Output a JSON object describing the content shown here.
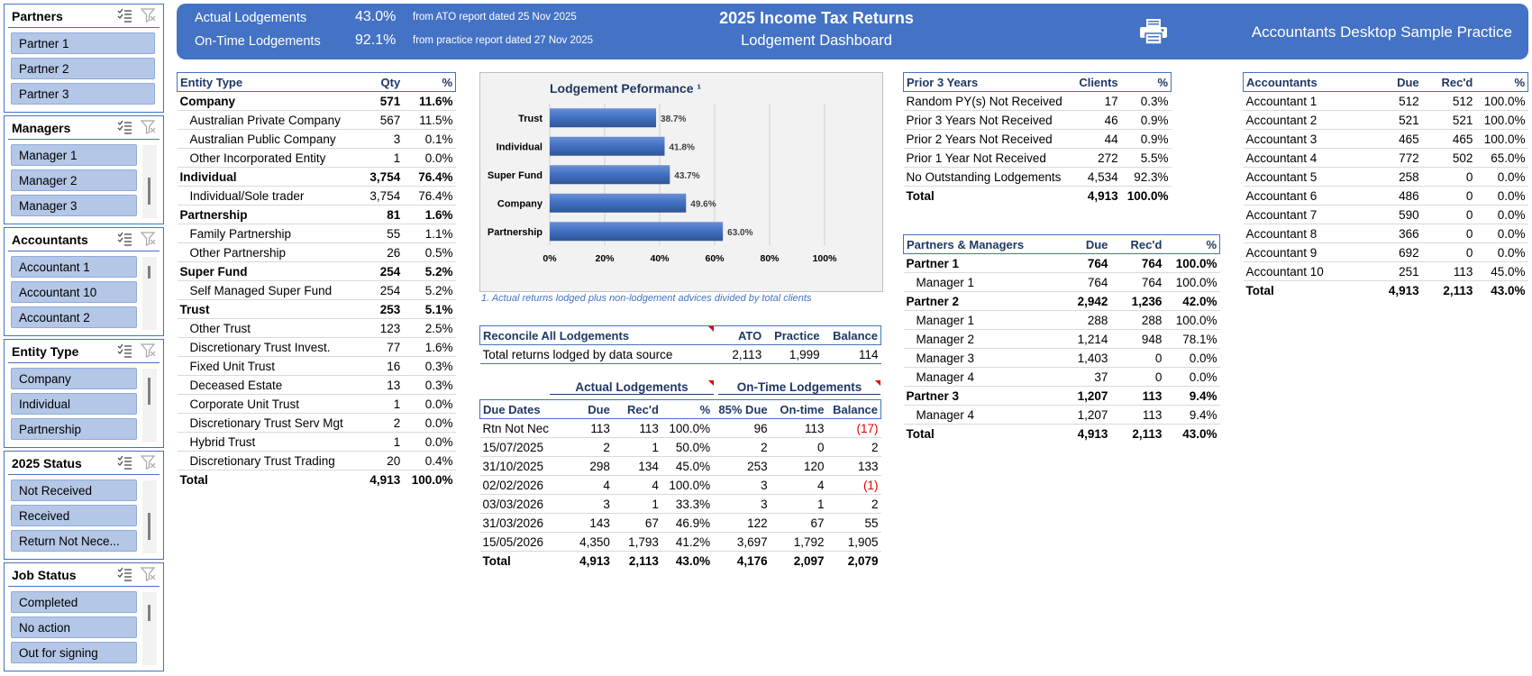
{
  "slicers": [
    {
      "title": "Partners",
      "items": [
        "Partner 1",
        "Partner 2",
        "Partner 3"
      ],
      "scroll": false
    },
    {
      "title": "Managers",
      "items": [
        "Manager 1",
        "Manager 2",
        "Manager 3"
      ],
      "scroll": true
    },
    {
      "title": "Accountants",
      "items": [
        "Accountant 1",
        "Accountant 10",
        "Accountant 2"
      ],
      "scroll": true
    },
    {
      "title": "Entity Type",
      "items": [
        "Company",
        "Individual",
        "Partnership"
      ],
      "scroll": true
    },
    {
      "title": "2025 Status",
      "items": [
        "Not Received",
        "Received",
        "Return Not Nece..."
      ],
      "scroll": true
    },
    {
      "title": "Job Status",
      "items": [
        "Completed",
        "No action",
        "Out for signing"
      ],
      "scroll": true
    }
  ],
  "header": {
    "actual_label": "Actual Lodgements",
    "actual_pct": "43.0%",
    "actual_note": "from ATO report dated 25 Nov 2025",
    "ontime_label": "On-Time Lodgements",
    "ontime_pct": "92.1%",
    "ontime_note": "from practice report dated 27 Nov 2025",
    "title": "2025 Income Tax Returns",
    "subtitle": "Lodgement Dashboard",
    "practice": "Accountants Desktop Sample Practice",
    "colors": {
      "banner": "#4472c4",
      "slicer_fill": "#b4c7e7",
      "bar": "#4472c4",
      "negative": "#e00000"
    }
  },
  "entity_table": {
    "headers": [
      "Entity Type",
      "Qty",
      "%"
    ],
    "rows": [
      {
        "label": "Company",
        "qty": "571",
        "pct": "11.6%",
        "bold": true
      },
      {
        "label": "Australian Private Company",
        "qty": "567",
        "pct": "11.5%"
      },
      {
        "label": "Australian Public Company",
        "qty": "3",
        "pct": "0.1%"
      },
      {
        "label": "Other Incorporated Entity",
        "qty": "1",
        "pct": "0.0%"
      },
      {
        "label": "Individual",
        "qty": "3,754",
        "pct": "76.4%",
        "bold": true
      },
      {
        "label": "Individual/Sole trader",
        "qty": "3,754",
        "pct": "76.4%"
      },
      {
        "label": "Partnership",
        "qty": "81",
        "pct": "1.6%",
        "bold": true
      },
      {
        "label": "Family Partnership",
        "qty": "55",
        "pct": "1.1%"
      },
      {
        "label": "Other Partnership",
        "qty": "26",
        "pct": "0.5%"
      },
      {
        "label": "Super Fund",
        "qty": "254",
        "pct": "5.2%",
        "bold": true
      },
      {
        "label": "Self Managed Super Fund",
        "qty": "254",
        "pct": "5.2%"
      },
      {
        "label": "Trust",
        "qty": "253",
        "pct": "5.1%",
        "bold": true
      },
      {
        "label": "Other Trust",
        "qty": "123",
        "pct": "2.5%"
      },
      {
        "label": "Discretionary Trust Invest.",
        "qty": "77",
        "pct": "1.6%"
      },
      {
        "label": "Fixed Unit Trust",
        "qty": "16",
        "pct": "0.3%"
      },
      {
        "label": "Deceased Estate",
        "qty": "13",
        "pct": "0.3%"
      },
      {
        "label": "Corporate Unit Trust",
        "qty": "1",
        "pct": "0.0%"
      },
      {
        "label": "Discretionary Trust Serv Mgt",
        "qty": "2",
        "pct": "0.0%"
      },
      {
        "label": "Hybrid Trust",
        "qty": "1",
        "pct": "0.0%"
      },
      {
        "label": "Discretionary Trust Trading",
        "qty": "20",
        "pct": "0.4%"
      }
    ],
    "total": {
      "label": "Total",
      "qty": "4,913",
      "pct": "100.0%"
    }
  },
  "chart_data": {
    "type": "bar",
    "title": "Lodgement Peformance ¹",
    "categories": [
      "Trust",
      "Individual",
      "Super Fund",
      "Company",
      "Partnership"
    ],
    "values": [
      38.7,
      41.8,
      43.7,
      49.6,
      63.0
    ],
    "value_labels": [
      "38.7%",
      "41.8%",
      "43.7%",
      "49.6%",
      "63.0%"
    ],
    "xlim": [
      0,
      100
    ],
    "xticks": [
      "0%",
      "20%",
      "40%",
      "60%",
      "80%",
      "100%"
    ],
    "orientation": "horizontal",
    "grid": true
  },
  "chart_note": "1. Actual returns lodged plus non-lodgement advices divided by total clients",
  "reconcile": {
    "headers": [
      "Reconcile All Lodgements",
      "ATO",
      "Practice",
      "Balance"
    ],
    "row": [
      "Total returns lodged by data source",
      "2,113",
      "1,999",
      "114"
    ]
  },
  "due_dates": {
    "group_actual": "Actual Lodgements",
    "group_ontime": "On-Time Lodgements",
    "headers": [
      "Due Dates",
      "Due",
      "Rec'd",
      "%",
      "85% Due",
      "On-time",
      "Balance"
    ],
    "rows": [
      [
        "Rtn Not Nec",
        "113",
        "113",
        "100.0%",
        "96",
        "113",
        "(17)"
      ],
      [
        "15/07/2025",
        "2",
        "1",
        "50.0%",
        "2",
        "0",
        "2"
      ],
      [
        "31/10/2025",
        "298",
        "134",
        "45.0%",
        "253",
        "120",
        "133"
      ],
      [
        "02/02/2026",
        "4",
        "4",
        "100.0%",
        "3",
        "4",
        "(1)"
      ],
      [
        "03/03/2026",
        "3",
        "1",
        "33.3%",
        "3",
        "1",
        "2"
      ],
      [
        "31/03/2026",
        "143",
        "67",
        "46.9%",
        "122",
        "67",
        "55"
      ],
      [
        "15/05/2026",
        "4,350",
        "1,793",
        "41.2%",
        "3,697",
        "1,792",
        "1,905"
      ]
    ],
    "total": [
      "Total",
      "4,913",
      "2,113",
      "43.0%",
      "4,176",
      "2,097",
      "2,079"
    ]
  },
  "prior_years": {
    "headers": [
      "Prior 3 Years",
      "Clients",
      "%"
    ],
    "rows": [
      [
        "Random PY(s) Not Received",
        "17",
        "0.3%"
      ],
      [
        "Prior 3 Years Not Received",
        "46",
        "0.9%"
      ],
      [
        "Prior 2 Years Not Received",
        "44",
        "0.9%"
      ],
      [
        "Prior 1 Year Not Received",
        "272",
        "5.5%"
      ],
      [
        "No Outstanding Lodgements",
        "4,534",
        "92.3%"
      ]
    ],
    "total": [
      "Total",
      "4,913",
      "100.0%"
    ]
  },
  "partners_managers": {
    "headers": [
      "Partners & Managers",
      "Due",
      "Rec'd",
      "%"
    ],
    "rows": [
      {
        "cells": [
          "Partner 1",
          "764",
          "764",
          "100.0%"
        ],
        "bold": true
      },
      {
        "cells": [
          "Manager 1",
          "764",
          "764",
          "100.0%"
        ]
      },
      {
        "cells": [
          "Partner 2",
          "2,942",
          "1,236",
          "42.0%"
        ],
        "bold": true
      },
      {
        "cells": [
          "Manager 1",
          "288",
          "288",
          "100.0%"
        ]
      },
      {
        "cells": [
          "Manager 2",
          "1,214",
          "948",
          "78.1%"
        ]
      },
      {
        "cells": [
          "Manager 3",
          "1,403",
          "0",
          "0.0%"
        ]
      },
      {
        "cells": [
          "Manager 4",
          "37",
          "0",
          "0.0%"
        ]
      },
      {
        "cells": [
          "Partner 3",
          "1,207",
          "113",
          "9.4%"
        ],
        "bold": true
      },
      {
        "cells": [
          "Manager 4",
          "1,207",
          "113",
          "9.4%"
        ]
      }
    ],
    "total": [
      "Total",
      "4,913",
      "2,113",
      "43.0%"
    ]
  },
  "accountants": {
    "headers": [
      "Accountants",
      "Due",
      "Rec'd",
      "%"
    ],
    "rows": [
      [
        "Accountant 1",
        "512",
        "512",
        "100.0%"
      ],
      [
        "Accountant 2",
        "521",
        "521",
        "100.0%"
      ],
      [
        "Accountant 3",
        "465",
        "465",
        "100.0%"
      ],
      [
        "Accountant 4",
        "772",
        "502",
        "65.0%"
      ],
      [
        "Accountant 5",
        "258",
        "0",
        "0.0%"
      ],
      [
        "Accountant 6",
        "486",
        "0",
        "0.0%"
      ],
      [
        "Accountant 7",
        "590",
        "0",
        "0.0%"
      ],
      [
        "Accountant 8",
        "366",
        "0",
        "0.0%"
      ],
      [
        "Accountant 9",
        "692",
        "0",
        "0.0%"
      ],
      [
        "Accountant 10",
        "251",
        "113",
        "45.0%"
      ]
    ],
    "total": [
      "Total",
      "4,913",
      "2,113",
      "43.0%"
    ]
  }
}
